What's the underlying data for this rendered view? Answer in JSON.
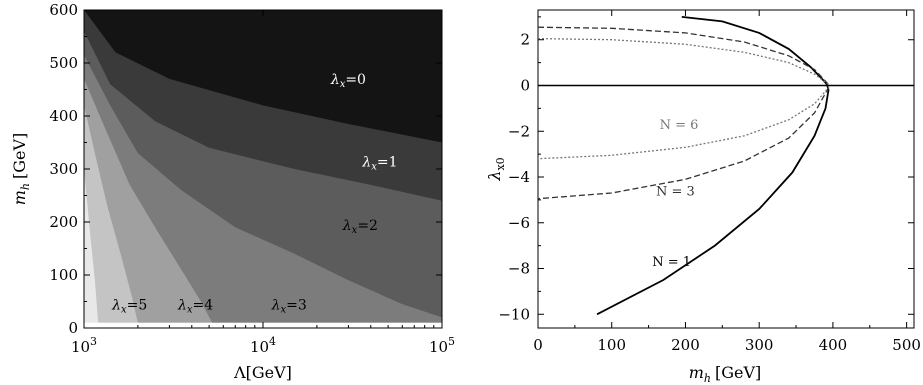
{
  "chart_data": [
    {
      "type": "heatmap",
      "xlabel": "Λ[GeV]",
      "ylabel": "m h [GeV]",
      "ylabel_main": "m",
      "ylabel_sub": "h",
      "ylabel_unit": "[GeV]",
      "xscale": "log",
      "xlim": [
        1000,
        100000
      ],
      "ylim": [
        0,
        600
      ],
      "x_ticks": [
        {
          "value": 1000,
          "base": "10",
          "exp": "3"
        },
        {
          "value": 10000,
          "base": "10",
          "exp": "4"
        },
        {
          "value": 100000,
          "base": "10",
          "exp": "5"
        }
      ],
      "y_ticks": [
        "0",
        "100",
        "200",
        "300",
        "400",
        "500",
        "600"
      ],
      "regions": [
        {
          "name": "λx=0",
          "sym": "λ",
          "sub": "x",
          "rest": "=0",
          "level": 0,
          "color": "#141414",
          "label_x": 30000,
          "label_y": 460
        },
        {
          "name": "λx=1",
          "sym": "λ",
          "sub": "x",
          "rest": "=1",
          "level": 1,
          "color": "#3a3a3a",
          "label_x": 45000,
          "label_y": 305
        },
        {
          "name": "λx=2",
          "sym": "λ",
          "sub": "x",
          "rest": "=2",
          "level": 2,
          "color": "#5c5c5c",
          "label_x": 35000,
          "label_y": 185
        },
        {
          "name": "λx=3",
          "sym": "λ",
          "sub": "x",
          "rest": "=3",
          "level": 3,
          "color": "#7c7c7c",
          "label_x": 14000,
          "label_y": 35
        },
        {
          "name": "λx=4",
          "sym": "λ",
          "sub": "x",
          "rest": "=4",
          "level": 4,
          "color": "#a0a0a0",
          "label_x": 4200,
          "label_y": 35
        },
        {
          "name": "λx=5",
          "sym": "λ",
          "sub": "x",
          "rest": "=5",
          "level": 5,
          "color": "#c4c4c4",
          "label_x": 1800,
          "label_y": 35
        }
      ],
      "boundaries": [
        {
          "level": 1,
          "points": [
            [
              1000,
              600
            ],
            [
              1500,
              520
            ],
            [
              3000,
              470
            ],
            [
              10000,
              420
            ],
            [
              30000,
              385
            ],
            [
              100000,
              350
            ]
          ]
        },
        {
          "level": 2,
          "points": [
            [
              1000,
              560
            ],
            [
              1400,
              460
            ],
            [
              2500,
              390
            ],
            [
              5000,
              340
            ],
            [
              15000,
              300
            ],
            [
              40000,
              270
            ],
            [
              100000,
              240
            ]
          ]
        },
        {
          "level": 3,
          "points": [
            [
              1000,
              515
            ],
            [
              1400,
              420
            ],
            [
              2000,
              330
            ],
            [
              3500,
              260
            ],
            [
              7000,
              190
            ],
            [
              15000,
              140
            ],
            [
              30000,
              90
            ],
            [
              60000,
              45
            ],
            [
              100000,
              20
            ]
          ]
        },
        {
          "level": 4,
          "points": [
            [
              1000,
              470
            ],
            [
              1300,
              380
            ],
            [
              1800,
              270
            ],
            [
              2600,
              180
            ],
            [
              3500,
              110
            ],
            [
              4500,
              50
            ],
            [
              5200,
              10
            ]
          ]
        },
        {
          "level": 5,
          "points": [
            [
              1000,
              420
            ],
            [
              1150,
              330
            ],
            [
              1350,
              230
            ],
            [
              1600,
              140
            ],
            [
              1850,
              60
            ],
            [
              2000,
              10
            ]
          ]
        },
        {
          "level": 6,
          "points": [
            [
              1000,
              300
            ],
            [
              1080,
              180
            ],
            [
              1150,
              90
            ],
            [
              1200,
              10
            ]
          ]
        }
      ],
      "extra_region_color": "#e8e8e8"
    },
    {
      "type": "line",
      "xlabel": "m h [GeV]",
      "xlabel_main": "m",
      "xlabel_sub": "h",
      "xlabel_unit": "[GeV]",
      "ylabel": "λx0",
      "ylabel_main": "λ",
      "ylabel_sub": "x0",
      "xlim": [
        0,
        510
      ],
      "ylim": [
        -10.6,
        3.3
      ],
      "x_ticks": [
        "0",
        "100",
        "200",
        "300",
        "400",
        "500"
      ],
      "y_ticks": [
        "2",
        "0",
        "-2",
        "-4",
        "-6",
        "-8",
        "-10"
      ],
      "series": [
        {
          "name": "N = 1",
          "style": "solid",
          "color": "#000000",
          "label_x": 155,
          "label_y": -7.9,
          "x": [
            195,
            250,
            300,
            340,
            370,
            385,
            392,
            394,
            390,
            375,
            345,
            300,
            240,
            170,
            80
          ],
          "y": [
            3.0,
            2.8,
            2.3,
            1.6,
            0.8,
            0.3,
            0.05,
            -0.2,
            -1.0,
            -2.2,
            -3.8,
            -5.4,
            -7.0,
            -8.5,
            -10.0
          ]
        },
        {
          "name": "N = 3",
          "style": "dashed",
          "color": "#333333",
          "label_x": 160,
          "label_y": -4.8,
          "x": [
            0,
            100,
            200,
            280,
            340,
            375,
            394,
            394,
            375,
            340,
            280,
            200,
            100,
            0
          ],
          "y": [
            2.55,
            2.5,
            2.3,
            1.9,
            1.3,
            0.7,
            0.05,
            -0.1,
            -1.2,
            -2.3,
            -3.3,
            -4.1,
            -4.7,
            -4.95
          ]
        },
        {
          "name": "N = 6",
          "style": "dotted",
          "color": "#777777",
          "label_x": 165,
          "label_y": -1.9,
          "x": [
            0,
            100,
            200,
            280,
            340,
            375,
            394,
            394,
            375,
            340,
            280,
            200,
            100,
            0
          ],
          "y": [
            2.05,
            2.0,
            1.8,
            1.45,
            1.0,
            0.5,
            0.05,
            -0.1,
            -0.8,
            -1.5,
            -2.2,
            -2.7,
            -3.05,
            -3.2
          ]
        }
      ],
      "hline": 0,
      "grid": false
    }
  ]
}
